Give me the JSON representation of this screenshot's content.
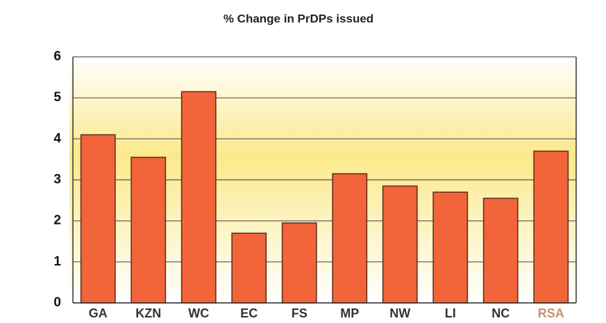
{
  "chart_data": {
    "type": "bar",
    "title": "% Change in PrDPs issued",
    "categories": [
      "GA",
      "KZN",
      "WC",
      "EC",
      "FS",
      "MP",
      "NW",
      "LI",
      "NC",
      "RSA"
    ],
    "values": [
      4.1,
      3.55,
      5.15,
      1.7,
      1.95,
      3.15,
      2.85,
      2.7,
      2.55,
      3.7
    ],
    "color": "#f2643a",
    "ylim": [
      0,
      6
    ],
    "yticks": [
      0,
      1,
      2,
      3,
      4,
      5,
      6
    ],
    "grid": true
  }
}
